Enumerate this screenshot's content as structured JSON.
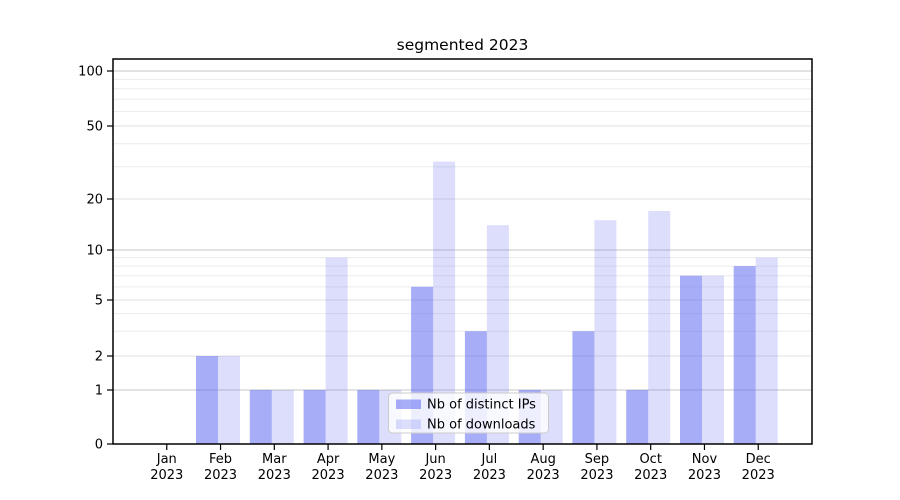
{
  "chart_data": {
    "type": "bar",
    "title": "segmented 2023",
    "categories": [
      "Jan 2023",
      "Feb 2023",
      "Mar 2023",
      "Apr 2023",
      "May 2023",
      "Jun 2023",
      "Jul 2023",
      "Aug 2023",
      "Sep 2023",
      "Oct 2023",
      "Nov 2023",
      "Dec 2023"
    ],
    "series": [
      {
        "name": "Nb of distinct IPs",
        "color": "rgba(95,105,240,0.55)",
        "values": [
          0,
          2,
          1,
          1,
          1,
          6,
          3,
          1,
          3,
          1,
          7,
          8
        ]
      },
      {
        "name": "Nb of downloads",
        "color": "rgba(95,105,240,0.22)",
        "values": [
          0,
          2,
          1,
          9,
          1,
          32,
          14,
          1,
          15,
          17,
          7,
          9
        ]
      }
    ],
    "xlabel": "",
    "ylabel": "",
    "y_axis": {
      "scale": "symlog",
      "ticks": [
        0,
        1,
        2,
        5,
        10,
        20,
        50,
        100
      ],
      "decade_ticks": [
        1,
        10,
        100
      ],
      "minor_gridlines": [
        3,
        4,
        6,
        7,
        8,
        9,
        30,
        40,
        60,
        70,
        80,
        90
      ],
      "range": [
        0,
        116
      ]
    },
    "grid": true,
    "legend": {
      "position": "lower-center"
    }
  },
  "colors": {
    "bar_base": "#5f69f0",
    "grid_decade": "#c6c6c6",
    "grid_labeled": "#e1e1e1",
    "grid_minor": "#ececec",
    "spine": "#000000",
    "legend_border": "#cccccc",
    "legend_bg": "rgba(255,255,255,0.8)",
    "text": "#000000"
  }
}
